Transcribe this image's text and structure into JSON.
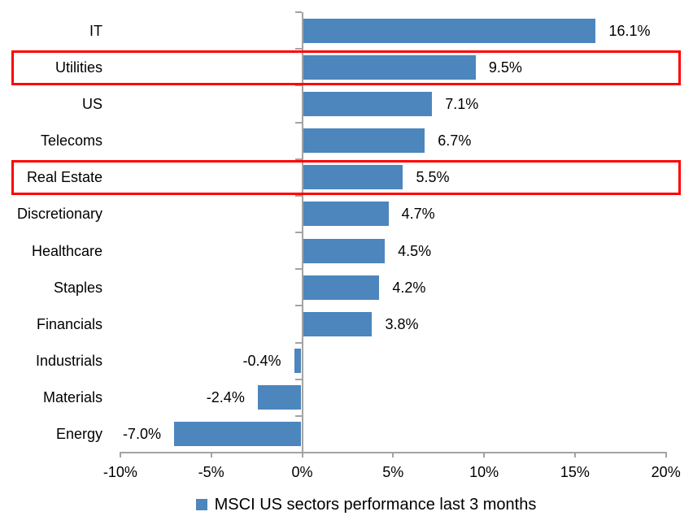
{
  "chart_data": {
    "type": "bar",
    "orientation": "horizontal",
    "title": "",
    "categories": [
      "IT",
      "Utilities",
      "US",
      "Telecoms",
      "Real Estate",
      "Discretionary",
      "Healthcare",
      "Staples",
      "Financials",
      "Industrials",
      "Materials",
      "Energy"
    ],
    "values": [
      16.1,
      9.5,
      7.1,
      6.7,
      5.5,
      4.7,
      4.5,
      4.2,
      3.8,
      -0.4,
      -2.4,
      -7.0
    ],
    "data_labels": [
      "16.1%",
      "9.5%",
      "7.1%",
      "6.7%",
      "5.5%",
      "4.7%",
      "4.5%",
      "4.2%",
      "3.8%",
      "-0.4%",
      "-2.4%",
      "-7.0%"
    ],
    "x_axis": {
      "min": -10,
      "max": 20,
      "tick_values": [
        -10,
        -5,
        0,
        5,
        10,
        15,
        20
      ],
      "ticks": [
        "-10%",
        "-5%",
        "0%",
        "5%",
        "10%",
        "15%",
        "20%"
      ]
    },
    "grid": "off",
    "legend": {
      "position": "bottom",
      "label": "MSCI US sectors performance last 3 months"
    },
    "highlighted_categories": [
      "Utilities",
      "Real Estate"
    ],
    "colors": {
      "bar": "#4c86bc",
      "axis": "#a3a3a3",
      "highlight_box": "#fe0000",
      "text": "#000000"
    }
  }
}
